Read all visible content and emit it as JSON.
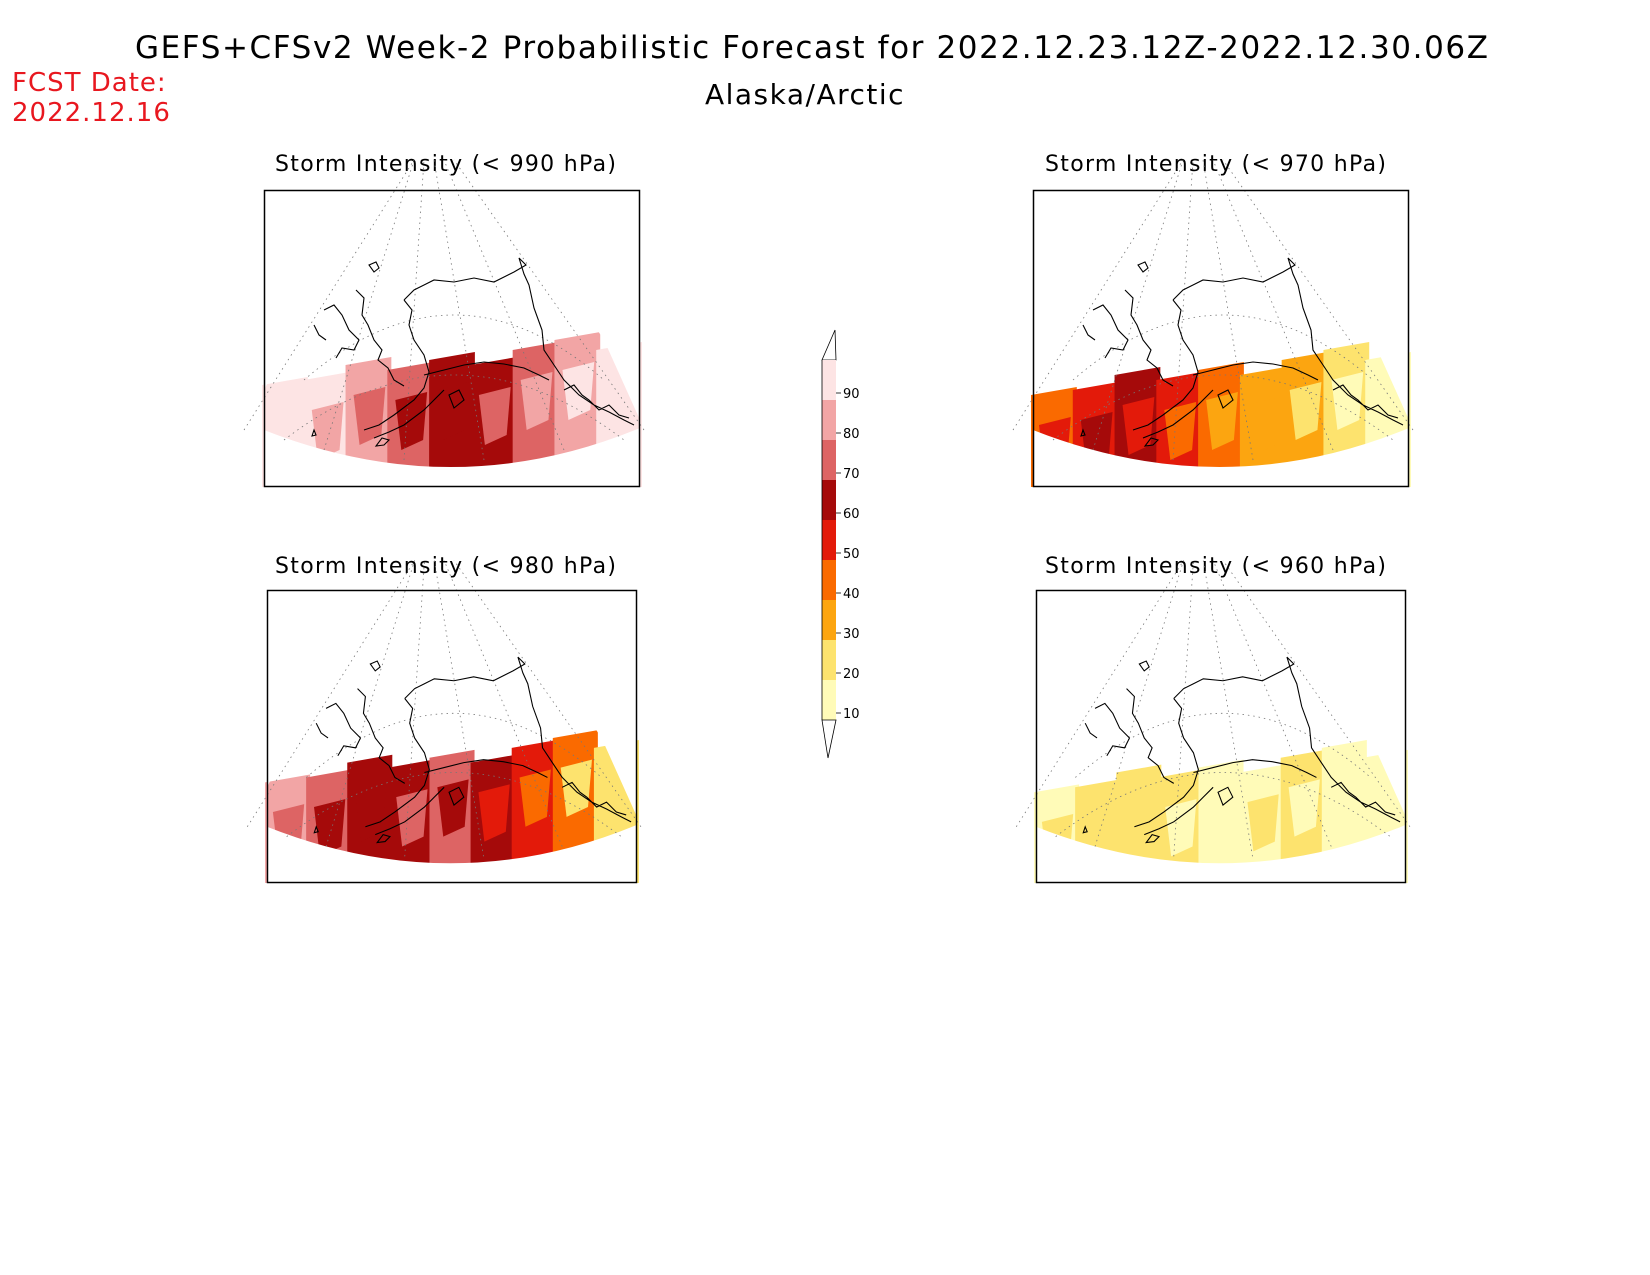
{
  "header": {
    "title": "GEFS+CFSv2 Week-2 Probabilistic Forecast for 2022.12.23.12Z-2022.12.30.06Z",
    "region": "Alaska/Arctic",
    "fcst_label": "FCST Date:",
    "fcst_date": "2022.12.16"
  },
  "panels": [
    {
      "id": "p990",
      "title": "Storm Intensity (< 990 hPa)",
      "levels": [
        90,
        90,
        80,
        70,
        60,
        60,
        70,
        80,
        90
      ],
      "dominant": "pink-red"
    },
    {
      "id": "p970",
      "title": "Storm Intensity (< 970 hPa)",
      "levels": [
        40,
        50,
        60,
        50,
        40,
        30,
        30,
        20,
        10
      ],
      "dominant": "orange-red"
    },
    {
      "id": "p980",
      "title": "Storm Intensity (< 980 hPa)",
      "levels": [
        80,
        70,
        60,
        60,
        70,
        60,
        50,
        40,
        20
      ],
      "dominant": "red"
    },
    {
      "id": "p960",
      "title": "Storm Intensity (< 960 hPa)",
      "levels": [
        10,
        20,
        20,
        20,
        10,
        10,
        20,
        10,
        10
      ],
      "dominant": "yellow"
    }
  ],
  "colorbar": {
    "ticks": [
      "90",
      "80",
      "70",
      "60",
      "50",
      "40",
      "30",
      "20",
      "10"
    ],
    "colors": [
      "#fde4e4",
      "#f2a5a5",
      "#dd6464",
      "#a50a0a",
      "#e31a0a",
      "#fa6a00",
      "#fca510",
      "#fde36e",
      "#fffbb8"
    ]
  }
}
